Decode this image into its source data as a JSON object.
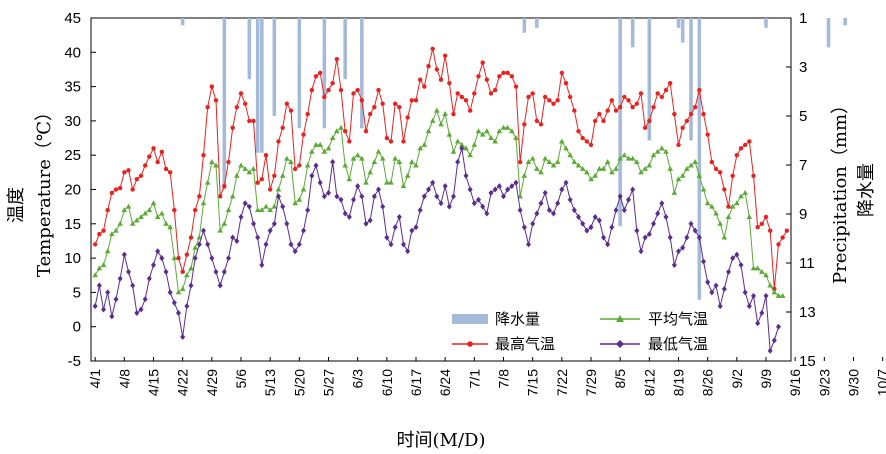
{
  "chart_data": {
    "type": "line",
    "xlabel": "时间(M/D)",
    "ylabel_left": "温度",
    "ylabel_left_en": "Temperature（℃）",
    "ylabel_right": "降水量",
    "ylabel_right_en": "Precipitation（mm）",
    "ylim_left": [
      -5,
      45
    ],
    "ylim_right_inverted": [
      1,
      15
    ],
    "y_ticks_left": [
      "45",
      "40",
      "35",
      "30",
      "25",
      "20",
      "15",
      "10",
      "5",
      "0",
      "-5"
    ],
    "y_ticks_right": [
      "1",
      "3",
      "5",
      "7",
      "9",
      "11",
      "13",
      "15"
    ],
    "x_ticks": [
      "4/1",
      "4/8",
      "4/15",
      "4/22",
      "4/29",
      "5/6",
      "5/13",
      "5/20",
      "5/27",
      "6/3",
      "6/10",
      "6/17",
      "6/24",
      "7/1",
      "7/8",
      "7/15",
      "7/22",
      "7/29",
      "8/5",
      "8/12",
      "8/19",
      "8/26",
      "9/2",
      "9/9",
      "9/16",
      "9/23",
      "9/30",
      "10/7"
    ],
    "legend": [
      "降水量",
      "最高气温",
      "平均气温",
      "最低气温"
    ],
    "series": [
      {
        "name": "最高气温",
        "color": "#e8231f",
        "marker": "circle",
        "values": [
          12.0,
          13.5,
          14.0,
          17.0,
          19.5,
          20.0,
          20.2,
          22.5,
          22.8,
          20.0,
          21.5,
          22.0,
          23.5,
          24.8,
          26.0,
          24.0,
          25.5,
          23.0,
          22.5,
          17.0,
          10.0,
          8.0,
          10.5,
          13.0,
          17.0,
          19.0,
          25.0,
          32.0,
          35.0,
          33.0,
          19.0,
          20.5,
          24.0,
          29.0,
          32.0,
          34.0,
          32.5,
          30.0,
          30.0,
          21.0,
          21.5,
          25.0,
          20.0,
          22.0,
          27.0,
          29.0,
          32.5,
          31.5,
          23.0,
          23.5,
          28.0,
          31.0,
          34.5,
          36.5,
          37.0,
          33.5,
          34.5,
          35.5,
          39.0,
          34.5,
          28.5,
          27.0,
          34.0,
          34.5,
          33.0,
          28.5,
          31.0,
          32.0,
          34.5,
          32.5,
          27.5,
          27.0,
          32.5,
          32.0,
          27.0,
          30.5,
          33.0,
          33.0,
          36.0,
          35.0,
          38.0,
          40.5,
          37.5,
          36.0,
          39.5,
          35.5,
          31.0,
          34.0,
          33.5,
          33.0,
          31.5,
          34.0,
          36.5,
          38.5,
          36.0,
          34.0,
          34.5,
          36.5,
          37.0,
          37.0,
          36.5,
          35.0,
          24.0,
          29.5,
          33.5,
          34.0,
          30.0,
          29.5,
          33.5,
          33.0,
          32.5,
          33.0,
          37.0,
          35.5,
          33.5,
          31.5,
          28.5,
          27.5,
          27.0,
          26.5,
          30.0,
          31.0,
          30.0,
          31.5,
          33.0,
          31.5,
          32.0,
          33.5,
          33.0,
          32.0,
          32.5,
          34.0,
          29.0,
          30.0,
          32.0,
          34.0,
          33.5,
          34.5,
          35.5,
          31.0,
          26.5,
          29.0,
          30.0,
          31.0,
          32.0,
          34.5,
          31.0,
          28.0,
          24.0,
          23.0,
          22.5,
          20.0,
          17.5,
          22.0,
          25.0,
          26.0,
          26.5,
          27.0,
          22.0,
          14.5,
          15.0,
          16.0,
          14.0,
          5.5,
          12.0,
          13.0,
          14.0
        ]
      },
      {
        "name": "平均气温",
        "color": "#5cab36",
        "marker": "triangle",
        "values": [
          7.5,
          8.5,
          9.0,
          11.0,
          13.5,
          14.0,
          15.0,
          17.0,
          17.5,
          15.0,
          15.5,
          16.0,
          16.5,
          17.0,
          18.0,
          16.0,
          16.5,
          15.0,
          14.5,
          10.0,
          5.0,
          5.5,
          7.5,
          8.5,
          11.5,
          13.0,
          18.0,
          21.0,
          24.0,
          23.5,
          14.0,
          15.0,
          17.0,
          19.0,
          22.0,
          23.5,
          23.0,
          22.5,
          23.0,
          17.0,
          17.0,
          17.5,
          17.0,
          17.5,
          20.0,
          22.0,
          24.5,
          24.0,
          18.0,
          18.5,
          20.0,
          23.5,
          25.5,
          26.5,
          26.5,
          25.5,
          26.0,
          27.5,
          28.5,
          29.0,
          23.5,
          21.5,
          24.5,
          25.0,
          24.5,
          21.0,
          22.5,
          24.0,
          25.5,
          24.5,
          21.0,
          21.0,
          24.5,
          24.0,
          20.5,
          22.0,
          24.0,
          23.5,
          26.0,
          26.5,
          28.5,
          30.0,
          31.5,
          29.5,
          31.0,
          28.0,
          25.5,
          27.0,
          26.5,
          26.0,
          25.0,
          26.5,
          28.5,
          28.0,
          28.5,
          27.5,
          27.0,
          28.5,
          29.0,
          29.0,
          28.5,
          27.5,
          19.0,
          22.0,
          24.0,
          24.5,
          23.0,
          22.5,
          24.5,
          24.0,
          23.5,
          24.0,
          27.0,
          26.0,
          25.0,
          24.0,
          23.5,
          23.0,
          22.5,
          21.5,
          22.0,
          23.0,
          23.0,
          24.0,
          22.5,
          23.0,
          24.5,
          25.0,
          24.5,
          24.5,
          24.0,
          22.5,
          23.0,
          23.5,
          25.0,
          25.5,
          26.0,
          25.5,
          23.0,
          19.5,
          21.5,
          22.0,
          23.0,
          23.5,
          24.0,
          22.0,
          20.0,
          18.0,
          17.5,
          16.5,
          15.0,
          13.0,
          16.0,
          17.5,
          18.0,
          19.0,
          19.5,
          16.0,
          8.5,
          8.5,
          8.0,
          7.5,
          6.0,
          5.0,
          4.5,
          4.5
        ]
      },
      {
        "name": "最低气温",
        "color": "#5a2d91",
        "marker": "diamond",
        "values": [
          3.0,
          6.0,
          2.5,
          5.0,
          1.5,
          4.0,
          7.0,
          10.5,
          8.0,
          6.0,
          2.0,
          2.5,
          4.0,
          7.0,
          9.0,
          11.0,
          10.0,
          8.0,
          5.0,
          3.5,
          2.0,
          -1.5,
          3.0,
          6.0,
          10.0,
          12.0,
          14.0,
          12.0,
          10.0,
          8.0,
          6.0,
          8.0,
          10.0,
          13.0,
          12.5,
          16.0,
          18.0,
          17.5,
          15.0,
          13.0,
          9.0,
          12.0,
          14.0,
          15.0,
          19.0,
          17.5,
          15.0,
          12.0,
          11.0,
          12.0,
          14.0,
          17.0,
          22.0,
          23.5,
          21.0,
          19.0,
          19.5,
          24.0,
          19.0,
          18.5,
          16.5,
          16.0,
          18.5,
          20.5,
          19.0,
          15.0,
          15.5,
          19.0,
          20.0,
          17.5,
          13.0,
          12.0,
          14.5,
          16.0,
          12.0,
          11.0,
          14.0,
          14.5,
          17.0,
          19.0,
          20.0,
          21.0,
          19.0,
          18.0,
          20.5,
          17.5,
          19.0,
          24.0,
          26.0,
          22.0,
          20.0,
          18.0,
          18.5,
          17.5,
          16.5,
          19.5,
          20.0,
          20.5,
          19.0,
          20.0,
          20.5,
          21.0,
          17.0,
          14.5,
          12.0,
          15.0,
          16.5,
          18.0,
          19.5,
          17.0,
          16.5,
          18.0,
          20.0,
          21.0,
          18.5,
          17.0,
          16.0,
          15.0,
          14.0,
          14.5,
          16.0,
          15.5,
          13.0,
          12.0,
          14.5,
          17.0,
          19.0,
          17.0,
          18.5,
          20.0,
          14.0,
          11.0,
          13.0,
          13.5,
          15.0,
          16.5,
          18.0,
          16.0,
          13.0,
          9.0,
          11.0,
          11.5,
          13.0,
          15.0,
          14.0,
          13.0,
          9.5,
          6.5,
          5.0,
          6.0,
          3.0,
          5.5,
          8.0,
          10.0,
          10.5,
          9.0,
          5.0,
          3.0,
          4.5,
          0.5,
          2.0,
          4.5,
          -3.5,
          -2.0,
          0.0
        ]
      },
      {
        "name": "降水量",
        "color": "#a5b9d8",
        "type": "bar",
        "axis": "right",
        "values": {
          "21": 0.3,
          "31": 7.0,
          "37": 2.5,
          "39": 5.5,
          "40": 5.5,
          "43": 4.0,
          "49": 4.5,
          "55": 4.5,
          "60": 2.5,
          "64": 4.5,
          "103": 0.6,
          "106": 0.4,
          "126": 8.5,
          "129": 1.2,
          "133": 5.0,
          "140": 0.4,
          "141": 1.0,
          "143": 5.0,
          "145": 11.5,
          "161": 0.4,
          "176": 1.2,
          "180": 0.3
        }
      }
    ]
  }
}
